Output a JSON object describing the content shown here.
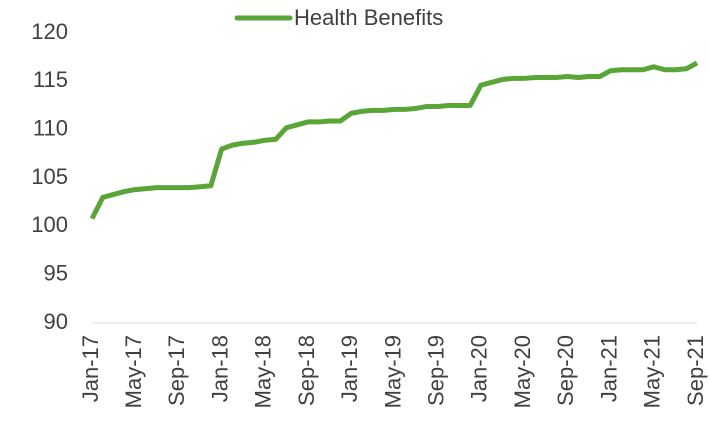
{
  "chart_data": {
    "type": "line",
    "categories": [
      "Jan-17",
      null,
      null,
      null,
      "May-17",
      null,
      null,
      null,
      "Sep-17",
      null,
      null,
      null,
      "Jan-18",
      null,
      null,
      null,
      "May-18",
      null,
      null,
      null,
      "Sep-18",
      null,
      null,
      null,
      "Jan-19",
      null,
      null,
      null,
      "May-19",
      null,
      null,
      null,
      "Sep-19",
      null,
      null,
      null,
      "Jan-20",
      null,
      null,
      null,
      "May-20",
      null,
      null,
      null,
      "Sep-20",
      null,
      null,
      null,
      "Jan-21",
      null,
      null,
      null,
      "May-21",
      null,
      null,
      null,
      "Sep-21"
    ],
    "series": [
      {
        "name": "Health Benefits",
        "color": "#5aa537",
        "values": [
          100.8,
          103.0,
          103.3,
          103.6,
          103.8,
          103.9,
          104.0,
          104.0,
          104.0,
          104.0,
          104.1,
          104.2,
          108.0,
          108.4,
          108.6,
          108.7,
          108.9,
          109.0,
          110.2,
          110.5,
          110.8,
          110.8,
          110.9,
          110.9,
          111.7,
          111.9,
          112.0,
          112.0,
          112.1,
          112.1,
          112.2,
          112.4,
          112.4,
          112.5,
          112.5,
          112.5,
          114.6,
          114.9,
          115.2,
          115.3,
          115.3,
          115.4,
          115.4,
          115.4,
          115.5,
          115.4,
          115.5,
          115.5,
          116.1,
          116.2,
          116.2,
          116.2,
          116.5,
          116.2,
          116.2,
          116.3,
          116.9
        ]
      }
    ],
    "ylim": [
      90,
      120
    ],
    "yticks": [
      90,
      95,
      100,
      105,
      110,
      115,
      120
    ],
    "grid": false,
    "legend": "top"
  }
}
